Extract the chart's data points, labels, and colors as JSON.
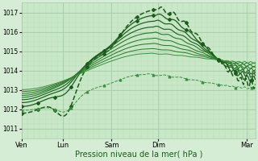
{
  "xlabel": "Pression niveau de la mer( hPa )",
  "bg_color": "#d4edd4",
  "plot_bg_color": "#c8e8c8",
  "grid_major_color": "#a8cca8",
  "grid_minor_color": "#b8d8b8",
  "line_color_dark": "#1a5c1a",
  "line_color_med": "#2a7a2a",
  "line_color_light": "#3a9040",
  "ylim": [
    1010.5,
    1017.5
  ],
  "yticks": [
    1011,
    1012,
    1013,
    1014,
    1015,
    1016,
    1017
  ],
  "xtick_labels": [
    "Ven",
    "Lun",
    "Sam",
    "Dim",
    "Mar"
  ],
  "xtick_positions": [
    0.0,
    0.175,
    0.385,
    0.585,
    0.965
  ],
  "n_points": 200
}
